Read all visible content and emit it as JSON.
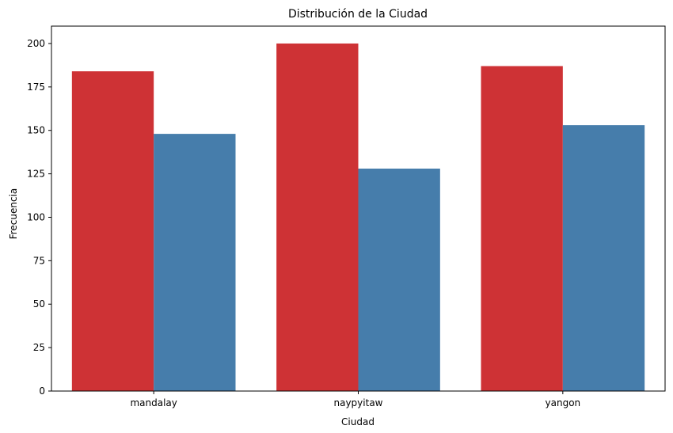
{
  "chart_data": {
    "type": "bar",
    "title": "Distribución de la Ciudad",
    "xlabel": "Ciudad",
    "ylabel": "Frecuencia",
    "categories": [
      "mandalay",
      "naypyitaw",
      "yangon"
    ],
    "series": [
      {
        "values": [
          184,
          200,
          187
        ],
        "color": "#ce3235"
      },
      {
        "values": [
          148,
          128,
          153
        ],
        "color": "#467dab"
      }
    ],
    "ylim": [
      0,
      210
    ],
    "yticks": [
      0,
      25,
      50,
      75,
      100,
      125,
      150,
      175,
      200
    ],
    "grid": false,
    "legend": "none"
  }
}
